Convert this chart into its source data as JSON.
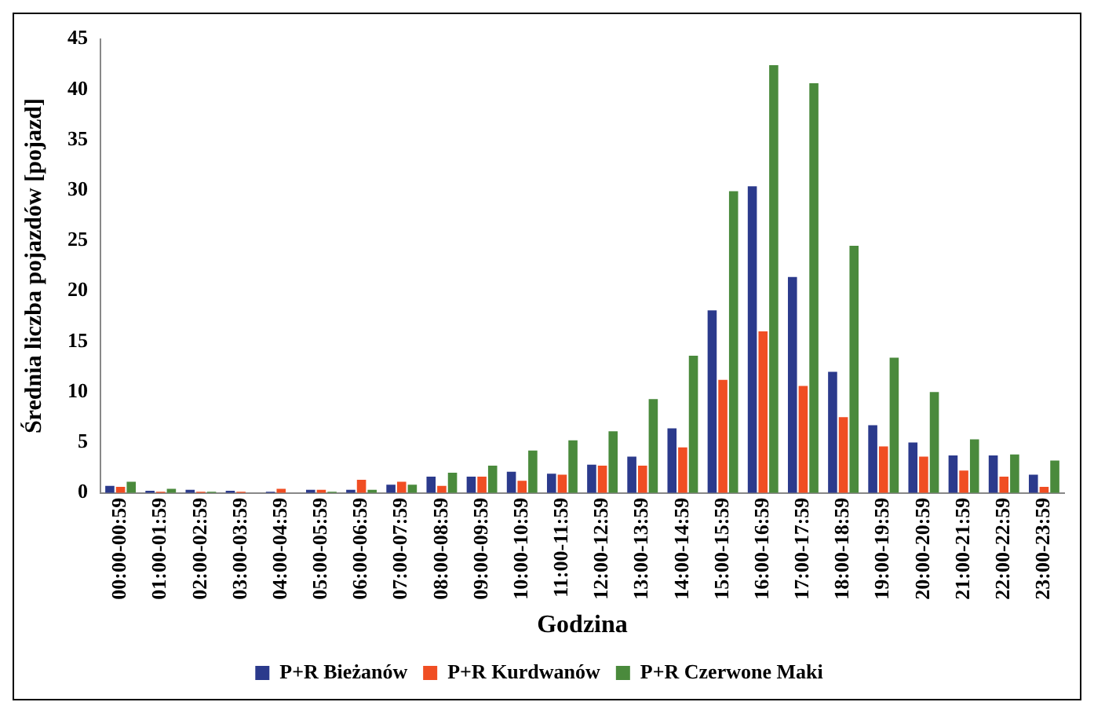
{
  "chart_data": {
    "type": "bar",
    "xlabel": "Godzina",
    "ylabel": "Średnia liczba pojazdów [pojazd]",
    "categories": [
      "00:00-00:59",
      "01:00-01:59",
      "02:00-02:59",
      "03:00-03:59",
      "04:00-04:59",
      "05:00-05:59",
      "06:00-06:59",
      "07:00-07:59",
      "08:00-08:59",
      "09:00-09:59",
      "10:00-10:59",
      "11:00-11:59",
      "12:00-12:59",
      "13:00-13:59",
      "14:00-14:59",
      "15:00-15:59",
      "16:00-16:59",
      "17:00-17:59",
      "18:00-18:59",
      "19:00-19:59",
      "20:00-20:59",
      "21:00-21:59",
      "22:00-22:59",
      "23:00-23:59"
    ],
    "series": [
      {
        "name": "P+R Bieżanów",
        "color": "#2b3a8c",
        "values": [
          0.7,
          0.2,
          0.3,
          0.2,
          0.1,
          0.3,
          0.3,
          0.8,
          1.6,
          1.6,
          2.1,
          1.9,
          2.8,
          3.6,
          6.4,
          18.1,
          30.4,
          21.4,
          12.0,
          6.7,
          5.0,
          3.7,
          3.7,
          1.8
        ]
      },
      {
        "name": "P+R Kurdwanów",
        "color": "#f04e23",
        "values": [
          0.6,
          0.1,
          0.1,
          0.1,
          0.4,
          0.3,
          1.3,
          1.1,
          0.7,
          1.6,
          1.2,
          1.8,
          2.7,
          2.7,
          4.5,
          11.2,
          16.0,
          10.6,
          7.5,
          4.6,
          3.6,
          2.2,
          1.6,
          0.6
        ]
      },
      {
        "name": "P+R Czerwone Maki",
        "color": "#4a8a3c",
        "values": [
          1.1,
          0.4,
          0.1,
          0,
          0,
          0.1,
          0.3,
          0.8,
          2.0,
          2.7,
          4.2,
          5.2,
          6.1,
          9.3,
          13.6,
          29.9,
          42.4,
          40.6,
          24.5,
          13.4,
          10.0,
          5.3,
          3.8,
          3.2
        ]
      }
    ],
    "ylim": [
      0,
      45
    ],
    "yticks": [
      0,
      5,
      10,
      15,
      20,
      25,
      30,
      35,
      40,
      45
    ],
    "grid": false,
    "legend": "bottom"
  }
}
